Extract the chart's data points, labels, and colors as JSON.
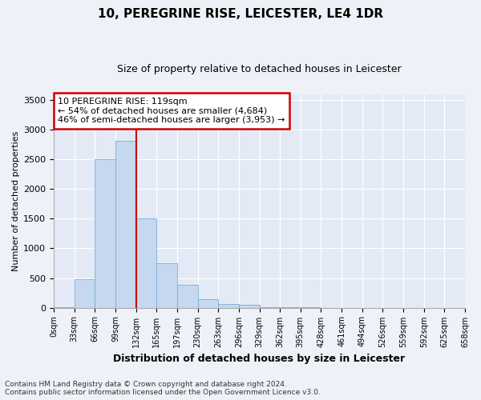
{
  "title": "10, PEREGRINE RISE, LEICESTER, LE4 1DR",
  "subtitle": "Size of property relative to detached houses in Leicester",
  "xlabel": "Distribution of detached houses by size in Leicester",
  "ylabel": "Number of detached properties",
  "bin_labels": [
    "0sqm",
    "33sqm",
    "66sqm",
    "99sqm",
    "132sqm",
    "165sqm",
    "197sqm",
    "230sqm",
    "263sqm",
    "296sqm",
    "329sqm",
    "362sqm",
    "395sqm",
    "428sqm",
    "461sqm",
    "494sqm",
    "526sqm",
    "559sqm",
    "592sqm",
    "625sqm",
    "658sqm"
  ],
  "bar_values": [
    10,
    480,
    2510,
    2820,
    1510,
    745,
    385,
    145,
    65,
    50,
    10,
    5,
    2,
    0,
    0,
    0,
    0,
    0,
    0,
    0
  ],
  "bar_color": "#c5d8f0",
  "bar_edge_color": "#7bacd4",
  "property_line_x": 4.0,
  "property_line_color": "#cc0000",
  "annotation_line1": "10 PEREGRINE RISE: 119sqm",
  "annotation_line2": "← 54% of detached houses are smaller (4,684)",
  "annotation_line3": "46% of semi-detached houses are larger (3,953) →",
  "annotation_box_color": "#cc0000",
  "ylim": [
    0,
    3600
  ],
  "yticks": [
    0,
    500,
    1000,
    1500,
    2000,
    2500,
    3000,
    3500
  ],
  "footer": "Contains HM Land Registry data © Crown copyright and database right 2024.\nContains public sector information licensed under the Open Government Licence v3.0.",
  "bg_color": "#eef2f8",
  "plot_bg_color": "#e4eaf5",
  "grid_color": "#ffffff",
  "title_fontsize": 11,
  "subtitle_fontsize": 9,
  "ylabel_fontsize": 8,
  "xlabel_fontsize": 9,
  "tick_fontsize": 7,
  "annotation_fontsize": 8,
  "footer_fontsize": 6.5
}
